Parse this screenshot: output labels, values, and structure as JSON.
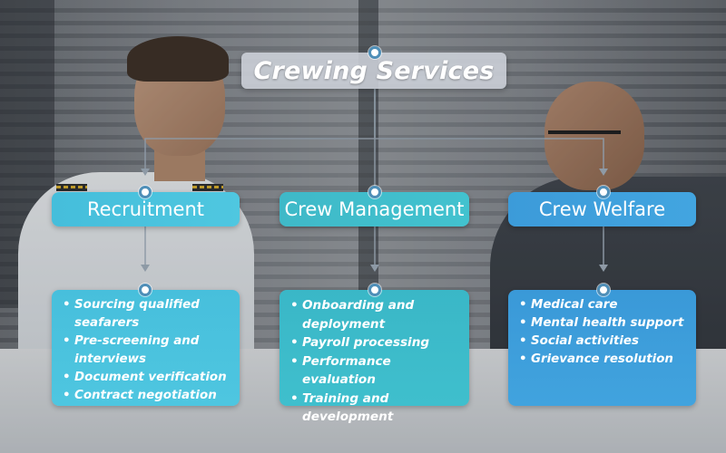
{
  "title": "Crewing Services",
  "colors": {
    "recruitment": "#4fc7e0",
    "crew_management": "#42c2cf",
    "crew_welfare": "#42a5e0",
    "title_bg": "#cdd2da"
  },
  "categories": [
    {
      "label": "Recruitment",
      "items": [
        "Sourcing qualified seafarers",
        "Pre-screening and interviews",
        "Document verification",
        "Contract negotiation"
      ]
    },
    {
      "label": "Crew Management",
      "items": [
        "Onboarding and deployment",
        "Payroll processing",
        "Performance evaluation",
        "Training and development"
      ]
    },
    {
      "label": "Crew Welfare",
      "items": [
        "Medical care",
        "Mental health support",
        "Social activities",
        "Grievance resolution"
      ]
    }
  ]
}
